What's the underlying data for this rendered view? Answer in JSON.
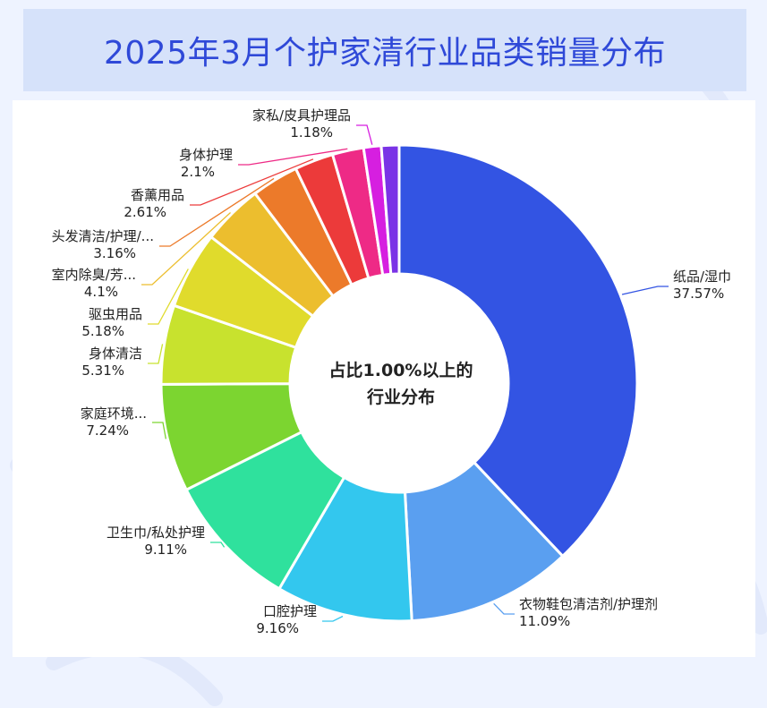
{
  "title": "2025年3月个护家清行业品类销量分布",
  "chart_data": {
    "type": "pie",
    "title": "2025年3月个护家清行业品类销量分布",
    "center_label": [
      "占比1.00%以上的",
      "行业分布"
    ],
    "slices": [
      {
        "name": "纸品/湿巾",
        "value": 37.57,
        "pct": "37.57%",
        "color": "#3354e3"
      },
      {
        "name": "衣物鞋包清洁剂/护理剂",
        "value": 11.09,
        "pct": "11.09%",
        "color": "#5a9ff0"
      },
      {
        "name": "口腔护理",
        "value": 9.16,
        "pct": "9.16%",
        "color": "#33c7ee"
      },
      {
        "name": "卫生巾/私处护理",
        "value": 9.11,
        "pct": "9.11%",
        "color": "#2fe19d"
      },
      {
        "name": "家庭环境...",
        "value": 7.24,
        "pct": "7.24%",
        "color": "#7cd530"
      },
      {
        "name": "身体清洁",
        "value": 5.31,
        "pct": "5.31%",
        "color": "#c8e22e"
      },
      {
        "name": "驱虫用品",
        "value": 5.18,
        "pct": "5.18%",
        "color": "#e0db2c"
      },
      {
        "name": "室内除臭/芳...",
        "value": 4.1,
        "pct": "4.1%",
        "color": "#ecbe2e"
      },
      {
        "name": "头发清洁/护理/...",
        "value": 3.16,
        "pct": "3.16%",
        "color": "#ec7a2a"
      },
      {
        "name": "香薰用品",
        "value": 2.61,
        "pct": "2.61%",
        "color": "#ec3a3a"
      },
      {
        "name": "身体护理",
        "value": 2.1,
        "pct": "2.1%",
        "color": "#ee2a86"
      },
      {
        "name": "家私/皮具护理品",
        "value": 1.18,
        "pct": "1.18%",
        "color": "#d61fe0"
      },
      {
        "name": "",
        "value": 1.19,
        "pct": "",
        "color": "#7a33e6"
      }
    ]
  }
}
